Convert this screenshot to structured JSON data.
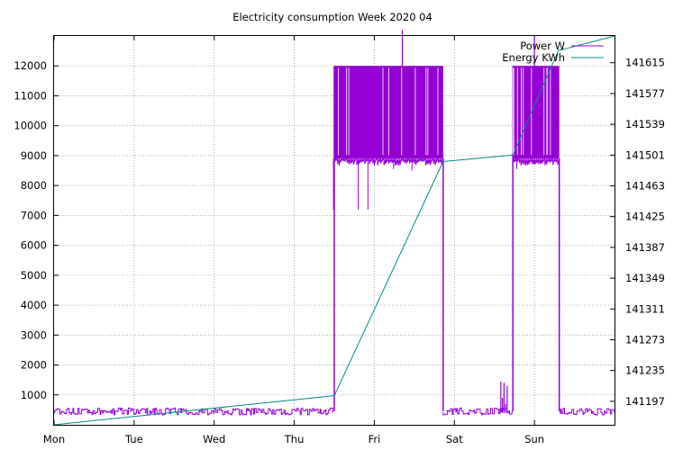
{
  "chart_data": {
    "type": "line",
    "title": "Electricity consumption Week 2020 04",
    "x_ticks": [
      "Mon",
      "Tue",
      "Wed",
      "Thu",
      "Fri",
      "Sat",
      "Sun"
    ],
    "x_range_days": [
      0,
      7
    ],
    "y_left": {
      "range": [
        0,
        13000
      ],
      "ticks": [
        1000,
        2000,
        3000,
        4000,
        5000,
        6000,
        7000,
        8000,
        9000,
        10000,
        11000,
        12000
      ]
    },
    "y_right": {
      "range": [
        141168,
        141648
      ],
      "ticks": [
        141197,
        141235,
        141273,
        141311,
        141349,
        141387,
        141425,
        141463,
        141501,
        141539,
        141577,
        141615
      ]
    },
    "grid": true,
    "legend_position": "top-right",
    "series": [
      {
        "name": "Power W",
        "axis": "left",
        "color": "#9400d3",
        "baseline_segments": [
          {
            "from": 0.0,
            "to": 3.48,
            "low": 330,
            "high": 560
          },
          {
            "from": 4.85,
            "to": 5.72,
            "low": 330,
            "high": 560
          },
          {
            "from": 6.31,
            "to": 7.0,
            "low": 330,
            "high": 560
          }
        ],
        "spikes": [
          {
            "x": 5.58,
            "y": 1450
          },
          {
            "x": 5.6,
            "y": 900
          },
          {
            "x": 5.62,
            "y": 1400
          },
          {
            "x": 5.64,
            "y": 700
          },
          {
            "x": 5.66,
            "y": 1300
          }
        ],
        "high_blocks": [
          {
            "from": 3.5,
            "to": 4.86,
            "low": 8900,
            "high": 12000
          },
          {
            "from": 5.73,
            "to": 6.31,
            "low": 8900,
            "high": 12000
          }
        ],
        "dips": [
          {
            "x": 3.49,
            "y": 7200
          },
          {
            "x": 3.8,
            "y": 7200
          },
          {
            "x": 3.92,
            "y": 7200
          },
          {
            "x": 4.24,
            "y": 8550
          },
          {
            "x": 4.47,
            "y": 8500
          },
          {
            "x": 5.78,
            "y": 8550
          }
        ],
        "peaks": [
          {
            "x": 4.35,
            "y": 13200
          },
          {
            "x": 6.0,
            "y": 13000
          }
        ]
      },
      {
        "name": "Energy KWh",
        "axis": "right",
        "color": "#008b8b",
        "points": [
          {
            "x": 0.0,
            "y": 141168
          },
          {
            "x": 3.5,
            "y": 141204
          },
          {
            "x": 4.86,
            "y": 141493
          },
          {
            "x": 5.73,
            "y": 141501
          },
          {
            "x": 6.3,
            "y": 141630
          },
          {
            "x": 7.0,
            "y": 141648
          }
        ]
      }
    ]
  }
}
